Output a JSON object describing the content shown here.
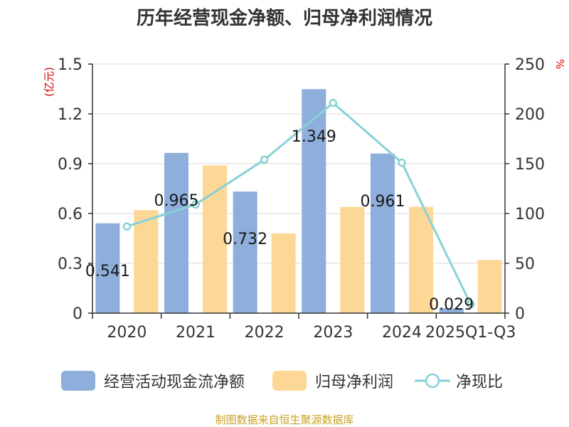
{
  "title": "历年经营现金净额、归母净利润情况",
  "chart_data": {
    "type": "bar",
    "categories": [
      "2020",
      "2021",
      "2022",
      "2023",
      "2024",
      "2025Q1-Q3"
    ],
    "left_axis": {
      "unit_label": "(亿元)",
      "min": 0,
      "max": 1.5,
      "ticks": [
        "0",
        "0.3",
        "0.6",
        "0.9",
        "1.2",
        "1.5"
      ]
    },
    "right_axis": {
      "unit_label": "%",
      "min": 0,
      "max": 250,
      "ticks": [
        "0",
        "50",
        "100",
        "150",
        "200",
        "250"
      ]
    },
    "series": [
      {
        "name": "经营活动现金流净额",
        "kind": "bar",
        "axis": "left",
        "color": "#8eaedb",
        "values": [
          0.541,
          0.965,
          0.732,
          1.349,
          0.961,
          0.029
        ],
        "labels": [
          "0.541",
          "0.965",
          "0.732",
          "1.349",
          "0.961",
          "0.029"
        ]
      },
      {
        "name": "归母净利润",
        "kind": "bar",
        "axis": "left",
        "color": "#fdd796",
        "values": [
          0.62,
          0.89,
          0.48,
          0.64,
          0.64,
          0.32
        ]
      },
      {
        "name": "净现比",
        "kind": "line",
        "axis": "right",
        "color": "#86d2d6",
        "values": [
          87,
          109,
          154,
          211,
          151,
          9
        ]
      }
    ],
    "grid": true,
    "legend_position": "bottom"
  },
  "source_note": "制图数据来自恒生聚源数据库"
}
